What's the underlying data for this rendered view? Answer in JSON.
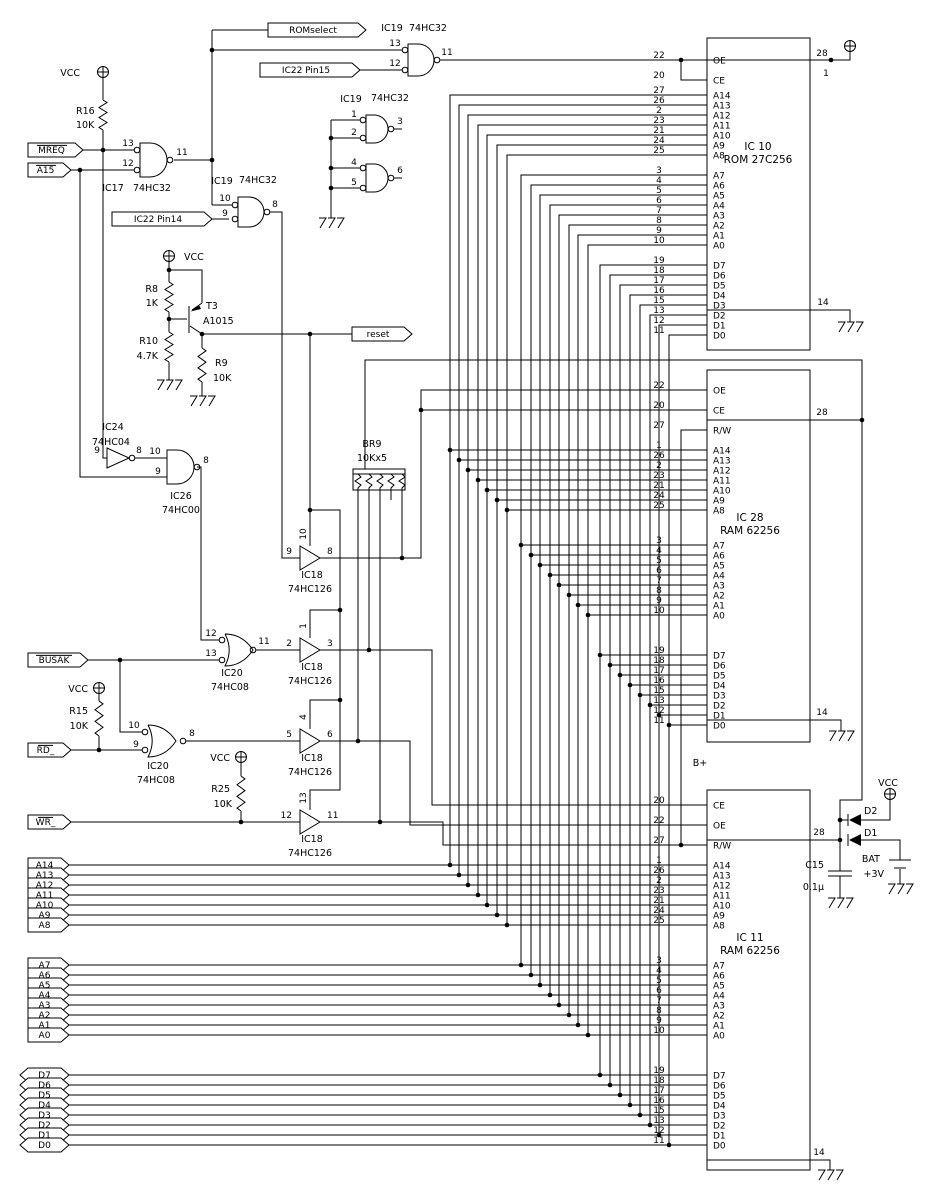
{
  "nets": {
    "romselect": "ROMselect",
    "ic22pin15": "IC22 Pin15",
    "ic22pin14": "IC22 Pin14",
    "mreq": "MREQ",
    "a15": "A15",
    "busak": "BUSAK",
    "rd": "RD_",
    "wr": "WR_",
    "reset": "reset",
    "bplus": "B+",
    "address_high": [
      "A14",
      "A13",
      "A12",
      "A11",
      "A10",
      "A9",
      "A8"
    ],
    "address_low": [
      "A7",
      "A6",
      "A5",
      "A4",
      "A3",
      "A2",
      "A1",
      "A0"
    ],
    "data_bus": [
      "D7",
      "D6",
      "D5",
      "D4",
      "D3",
      "D2",
      "D1",
      "D0"
    ]
  },
  "power": {
    "vcc": "VCC"
  },
  "chips": [
    {
      "ref": "IC 10",
      "part": "ROM 27C256",
      "left_pins": [
        [
          "22",
          "OE"
        ],
        [
          "20",
          "CE"
        ],
        [
          "27",
          "A14"
        ],
        [
          "26",
          "A13"
        ],
        [
          "2",
          "A12"
        ],
        [
          "23",
          "A11"
        ],
        [
          "21",
          "A10"
        ],
        [
          "24",
          "A9"
        ],
        [
          "25",
          "A8"
        ],
        [
          "3",
          "A7"
        ],
        [
          "4",
          "A6"
        ],
        [
          "5",
          "A5"
        ],
        [
          "6",
          "A4"
        ],
        [
          "7",
          "A3"
        ],
        [
          "8",
          "A2"
        ],
        [
          "9",
          "A1"
        ],
        [
          "10",
          "A0"
        ],
        [
          "19",
          "D7"
        ],
        [
          "18",
          "D6"
        ],
        [
          "17",
          "D5"
        ],
        [
          "16",
          "D4"
        ],
        [
          "15",
          "D3"
        ],
        [
          "13",
          "D2"
        ],
        [
          "12",
          "D1"
        ],
        [
          "11",
          "D0"
        ]
      ],
      "right_pins": [
        "28",
        "1",
        "14"
      ]
    },
    {
      "ref": "IC 28",
      "part": "RAM 62256",
      "left_pins": [
        [
          "22",
          "OE"
        ],
        [
          "20",
          "CE"
        ],
        [
          "27",
          "R/W"
        ],
        [
          "1",
          "A14"
        ],
        [
          "26",
          "A13"
        ],
        [
          "2",
          "A12"
        ],
        [
          "23",
          "A11"
        ],
        [
          "21",
          "A10"
        ],
        [
          "24",
          "A9"
        ],
        [
          "25",
          "A8"
        ],
        [
          "3",
          "A7"
        ],
        [
          "4",
          "A6"
        ],
        [
          "5",
          "A5"
        ],
        [
          "6",
          "A4"
        ],
        [
          "7",
          "A3"
        ],
        [
          "8",
          "A2"
        ],
        [
          "9",
          "A1"
        ],
        [
          "10",
          "A0"
        ],
        [
          "19",
          "D7"
        ],
        [
          "18",
          "D6"
        ],
        [
          "17",
          "D5"
        ],
        [
          "16",
          "D4"
        ],
        [
          "15",
          "D3"
        ],
        [
          "13",
          "D2"
        ],
        [
          "12",
          "D1"
        ],
        [
          "11",
          "D0"
        ]
      ],
      "right_pins": [
        "28",
        "14"
      ]
    },
    {
      "ref": "IC 11",
      "part": "RAM 62256",
      "left_pins": [
        [
          "20",
          "CE"
        ],
        [
          "22",
          "OE"
        ],
        [
          "27",
          "R/W"
        ],
        [
          "1",
          "A14"
        ],
        [
          "26",
          "A13"
        ],
        [
          "2",
          "A12"
        ],
        [
          "23",
          "A11"
        ],
        [
          "21",
          "A10"
        ],
        [
          "24",
          "A9"
        ],
        [
          "25",
          "A8"
        ],
        [
          "3",
          "A7"
        ],
        [
          "4",
          "A6"
        ],
        [
          "5",
          "A5"
        ],
        [
          "6",
          "A4"
        ],
        [
          "7",
          "A3"
        ],
        [
          "8",
          "A2"
        ],
        [
          "9",
          "A1"
        ],
        [
          "10",
          "A0"
        ],
        [
          "19",
          "D7"
        ],
        [
          "18",
          "D6"
        ],
        [
          "17",
          "D5"
        ],
        [
          "16",
          "D4"
        ],
        [
          "15",
          "D3"
        ],
        [
          "13",
          "D2"
        ],
        [
          "12",
          "D1"
        ],
        [
          "11",
          "D0"
        ]
      ],
      "right_pins": [
        "28",
        "14"
      ]
    }
  ],
  "gates": {
    "ic17": {
      "ref": "IC17",
      "part": "74HC32",
      "in1": "13",
      "in2": "12",
      "out": "11"
    },
    "ic19a": {
      "ref": "IC19",
      "part": "74HC32",
      "in1": "13",
      "in2": "12",
      "out": "11"
    },
    "ic19b": {
      "ref": "IC19",
      "part": "74HC32",
      "in1": "10",
      "in2": "9",
      "out": "8"
    },
    "ic19c": {
      "in1": "1",
      "in2": "2",
      "out": "3"
    },
    "ic19d": {
      "in1": "4",
      "in2": "5",
      "out": "6"
    },
    "ic19cd": {
      "ref": "IC19",
      "part": "74HC32"
    },
    "ic24": {
      "ref": "IC24",
      "part": "74HC04",
      "in": "9",
      "out": "8"
    },
    "ic26": {
      "ref": "IC26",
      "part": "74HC00",
      "in1": "10",
      "in2": "9",
      "out": "8"
    },
    "ic20a": {
      "ref": "IC20",
      "part": "74HC08",
      "in1": "12",
      "in2": "13",
      "out": "11"
    },
    "ic20b": {
      "ref": "IC20",
      "part": "74HC08",
      "in1": "10",
      "in2": "9",
      "out": "8"
    }
  },
  "buffers": [
    {
      "ref": "IC18",
      "part": "74HC126",
      "in": "9",
      "out": "8",
      "en": "10"
    },
    {
      "ref": "IC18",
      "part": "74HC126",
      "in": "2",
      "out": "3",
      "en": "1"
    },
    {
      "ref": "IC18",
      "part": "74HC126",
      "in": "5",
      "out": "6",
      "en": "4"
    },
    {
      "ref": "IC18",
      "part": "74HC126",
      "in": "12",
      "out": "11",
      "en": "13"
    }
  ],
  "resistors": {
    "r16": {
      "ref": "R16",
      "value": "10K"
    },
    "r8": {
      "ref": "R8",
      "value": "1K"
    },
    "r10": {
      "ref": "R10",
      "value": "4.7K"
    },
    "r9": {
      "ref": "R9",
      "value": "10K"
    },
    "r15": {
      "ref": "R15",
      "value": "10K"
    },
    "r25": {
      "ref": "R25",
      "value": "10K"
    },
    "br9": {
      "ref": "BR9",
      "value": "10Kx5"
    }
  },
  "transistor": {
    "ref": "T3",
    "part": "A1015"
  },
  "diodes": {
    "d1": "D1",
    "d2": "D2"
  },
  "capacitor": {
    "ref": "C15",
    "value": "0.1µ"
  },
  "battery": {
    "ref": "BAT",
    "value": "+3V"
  }
}
